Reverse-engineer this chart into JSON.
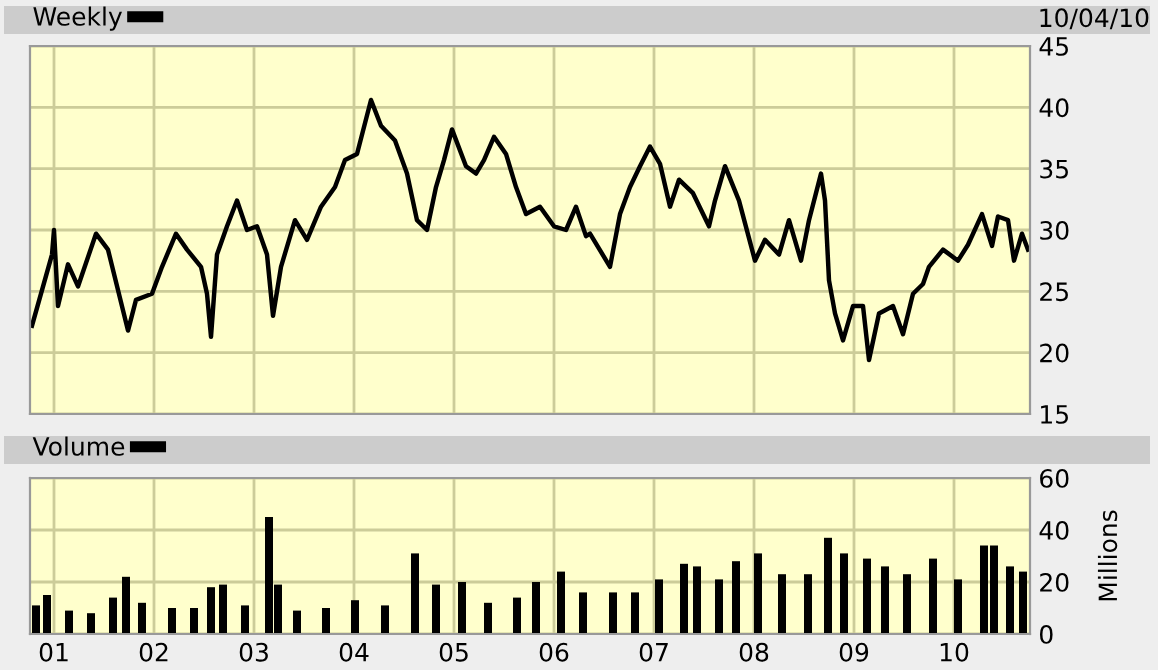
{
  "chart_data": [
    {
      "type": "line",
      "legend": "top left",
      "grid": true,
      "tick_labels": "y",
      "annotations": [
        "10/04/10"
      ],
      "xlim": [
        2000.76,
        2010.76
      ],
      "xticks": [
        {
          "value": 2001,
          "label": null
        },
        {
          "value": 2002,
          "label": null
        },
        {
          "value": 2003,
          "label": null
        },
        {
          "value": 2004,
          "label": null
        },
        {
          "value": 2005,
          "label": null
        },
        {
          "value": 2006,
          "label": null
        },
        {
          "value": 2007,
          "label": null
        },
        {
          "value": 2008,
          "label": null
        },
        {
          "value": 2009,
          "label": null
        },
        {
          "value": 2010,
          "label": null
        }
      ],
      "ylim": [
        15,
        45
      ],
      "yticks": [
        15,
        20,
        25,
        30,
        35,
        40,
        45
      ],
      "series": [
        {
          "name": "Weekly",
          "color": "#000000",
          "x": [
            2000.78,
            2000.98,
            2001.0,
            2001.04,
            2001.14,
            2001.24,
            2001.42,
            2001.54,
            2001.74,
            2001.82,
            2001.98,
            2002.08,
            2002.22,
            2002.33,
            2002.47,
            2002.53,
            2002.57,
            2002.63,
            2002.73,
            2002.83,
            2002.93,
            2003.03,
            2003.13,
            2003.19,
            2003.27,
            2003.41,
            2003.53,
            2003.67,
            2003.81,
            2003.91,
            2004.03,
            2004.17,
            2004.27,
            2004.41,
            2004.53,
            2004.63,
            2004.73,
            2004.82,
            2004.9,
            2004.98,
            2005.12,
            2005.22,
            2005.3,
            2005.4,
            2005.52,
            2005.62,
            2005.72,
            2005.86,
            2006.0,
            2006.12,
            2006.22,
            2006.32,
            2006.36,
            2006.56,
            2006.66,
            2006.76,
            2006.86,
            2006.96,
            2007.06,
            2007.16,
            2007.25,
            2007.39,
            2007.55,
            2007.61,
            2007.71,
            2007.85,
            2008.01,
            2008.11,
            2008.25,
            2008.35,
            2008.47,
            2008.55,
            2008.67,
            2008.71,
            2008.75,
            2008.81,
            2008.89,
            2008.99,
            2009.09,
            2009.15,
            2009.25,
            2009.39,
            2009.49,
            2009.59,
            2009.69,
            2009.75,
            2009.89,
            2010.04,
            2010.14,
            2010.28,
            2010.38,
            2010.44,
            2010.54,
            2010.6,
            2010.68,
            2010.74
          ],
          "values": [
            22.2,
            28.0,
            30.0,
            23.8,
            27.2,
            25.4,
            29.7,
            28.4,
            21.8,
            24.3,
            24.8,
            27.0,
            29.7,
            28.4,
            27.0,
            24.8,
            21.3,
            28.0,
            30.3,
            32.4,
            30.0,
            30.3,
            28.0,
            23.0,
            27.0,
            30.8,
            29.2,
            31.9,
            33.5,
            35.7,
            36.2,
            40.6,
            38.5,
            37.3,
            34.6,
            30.8,
            30.0,
            33.5,
            35.7,
            38.2,
            35.2,
            34.6,
            35.7,
            37.6,
            36.2,
            33.5,
            31.3,
            31.9,
            30.3,
            30.0,
            31.9,
            29.5,
            29.7,
            27.0,
            31.3,
            33.5,
            35.2,
            36.8,
            35.4,
            31.9,
            34.1,
            33.0,
            30.3,
            32.4,
            35.2,
            32.4,
            27.5,
            29.2,
            28.0,
            30.8,
            27.5,
            30.8,
            34.6,
            32.4,
            25.9,
            23.2,
            21.0,
            23.8,
            23.8,
            19.4,
            23.2,
            23.8,
            21.5,
            24.8,
            25.6,
            27.0,
            28.4,
            27.5,
            28.8,
            31.3,
            28.7,
            31.1,
            30.8,
            27.5,
            29.7,
            28.4
          ]
        }
      ]
    },
    {
      "type": "bar",
      "legend": "top left",
      "grid": true,
      "ylabel": "Millions",
      "xlim": [
        2000.76,
        2010.76
      ],
      "xticks": [
        {
          "value": 2001,
          "label": "01"
        },
        {
          "value": 2002,
          "label": "02"
        },
        {
          "value": 2003,
          "label": "03"
        },
        {
          "value": 2004,
          "label": "04"
        },
        {
          "value": 2005,
          "label": "05"
        },
        {
          "value": 2006,
          "label": "06"
        },
        {
          "value": 2007,
          "label": "07"
        },
        {
          "value": 2008,
          "label": "08"
        },
        {
          "value": 2009,
          "label": "09"
        },
        {
          "value": 2010,
          "label": "10"
        }
      ],
      "ylim": [
        0,
        60
      ],
      "yticks": [
        0,
        20,
        40,
        60
      ],
      "series": [
        {
          "name": "Volume",
          "color": "#000000",
          "x": [
            2000.82,
            2000.93,
            2001.15,
            2001.37,
            2001.59,
            2001.72,
            2001.88,
            2002.18,
            2002.4,
            2002.57,
            2002.69,
            2002.91,
            2003.15,
            2003.24,
            2003.43,
            2003.72,
            2004.01,
            2004.31,
            2004.61,
            2004.82,
            2005.08,
            2005.34,
            2005.63,
            2005.82,
            2006.07,
            2006.29,
            2006.59,
            2006.81,
            2007.05,
            2007.3,
            2007.43,
            2007.65,
            2007.82,
            2008.04,
            2008.28,
            2008.54,
            2008.74,
            2008.9,
            2009.13,
            2009.31,
            2009.53,
            2009.79,
            2010.04,
            2010.3,
            2010.4,
            2010.56,
            2010.69
          ],
          "values": [
            11,
            15,
            9,
            8,
            14,
            22,
            12,
            10,
            10,
            18,
            19,
            11,
            45,
            19,
            9,
            10,
            13,
            11,
            31,
            19,
            20,
            12,
            14,
            20,
            24,
            16,
            16,
            16,
            21,
            27,
            26,
            21,
            28,
            31,
            23,
            23,
            37,
            31,
            29,
            26,
            23,
            29,
            21,
            34,
            34,
            26,
            24
          ]
        }
      ]
    }
  ]
}
